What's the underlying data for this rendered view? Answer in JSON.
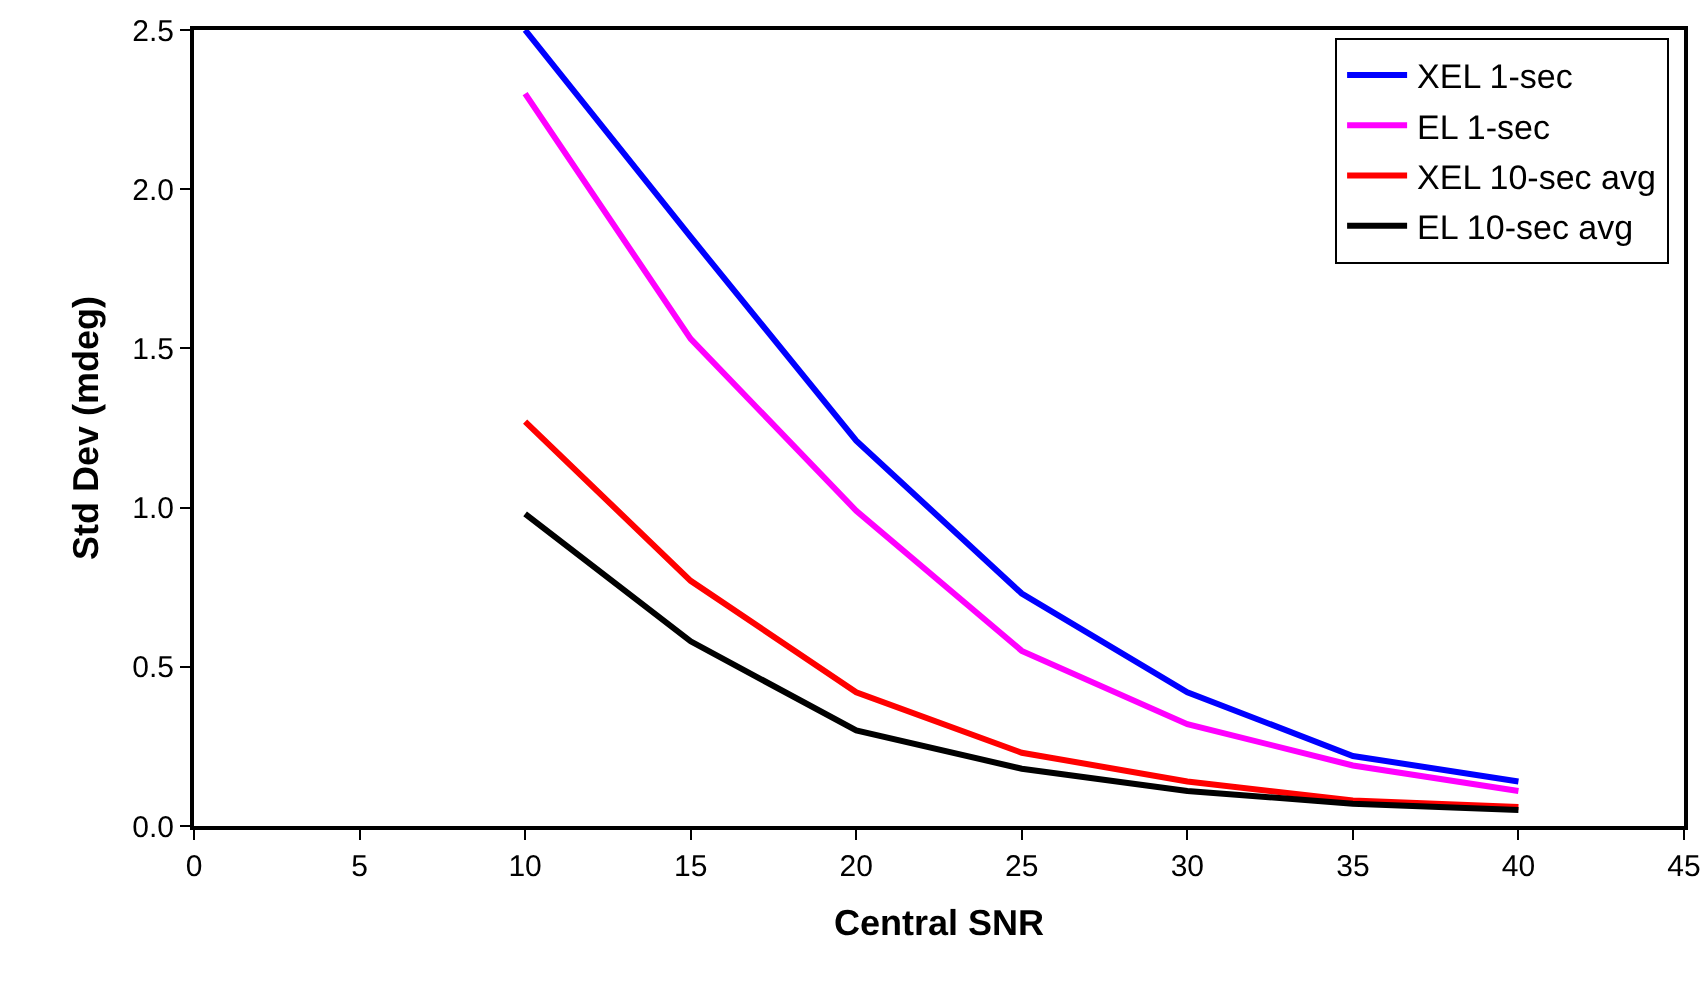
{
  "chart_data": {
    "type": "line",
    "xlabel": "Central SNR",
    "ylabel": "Std Dev (mdeg)",
    "x": [
      10,
      15,
      20,
      25,
      30,
      35,
      40
    ],
    "series": [
      {
        "name": "XEL 1-sec",
        "color": "#0000ff",
        "values": [
          2.5,
          1.85,
          1.21,
          0.73,
          0.42,
          0.22,
          0.14
        ]
      },
      {
        "name": "EL 1-sec",
        "color": "#ff00ff",
        "values": [
          2.3,
          1.53,
          0.99,
          0.55,
          0.32,
          0.19,
          0.11
        ]
      },
      {
        "name": "XEL 10-sec avg",
        "color": "#ff0000",
        "values": [
          1.27,
          0.77,
          0.42,
          0.23,
          0.14,
          0.08,
          0.06
        ]
      },
      {
        "name": "EL 10-sec avg",
        "color": "#000000",
        "values": [
          0.98,
          0.58,
          0.3,
          0.18,
          0.11,
          0.07,
          0.05
        ]
      }
    ],
    "xlim": [
      0,
      45
    ],
    "xticks": [
      0,
      5,
      10,
      15,
      20,
      25,
      30,
      35,
      40,
      45
    ],
    "ylim": [
      0,
      2.5
    ],
    "yticks": [
      {
        "value": 0,
        "label": "0.0"
      },
      {
        "value": 0.5,
        "label": "0.5"
      },
      {
        "value": 1,
        "label": "1.0"
      },
      {
        "value": 1.5,
        "label": "1.5"
      },
      {
        "value": 2,
        "label": "2.0"
      },
      {
        "value": 2.5,
        "label": "2.5"
      }
    ],
    "grid": false,
    "legend": "top right",
    "marker": "none",
    "line_style": "solid"
  }
}
